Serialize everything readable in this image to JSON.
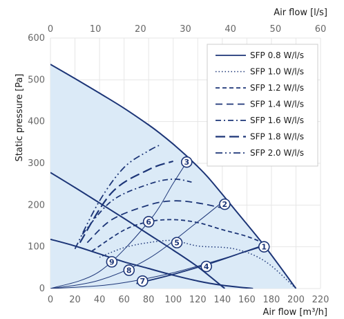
{
  "chart_data": {
    "type": "line",
    "title": "",
    "xlabel": "Air flow [m³/h]",
    "x2label": "Air flow [l/s]",
    "ylabel": "Static pressure [Pa]",
    "xlim": [
      0,
      220
    ],
    "x2lim": [
      0,
      60
    ],
    "ylim": [
      0,
      600
    ],
    "x_ticks": [
      "0",
      "20",
      "40",
      "60",
      "80",
      "100",
      "120",
      "140",
      "160",
      "180",
      "200",
      "220"
    ],
    "x2_ticks": [
      "0",
      "10",
      "20",
      "30",
      "40",
      "50",
      "60"
    ],
    "y_ticks": [
      "0",
      "100",
      "200",
      "300",
      "400",
      "500",
      "600"
    ],
    "grid": true,
    "legend_position": "top-right",
    "colors": {
      "curve": "#1c3577",
      "area_fill": "#dbeaf7",
      "grid": "#e6e6e6",
      "axis_text": "#666666"
    },
    "fan_curves": [
      {
        "x": [
          0,
          20,
          40,
          60,
          80,
          90,
          100,
          110,
          120,
          130,
          150,
          175,
          200
        ],
        "y": [
          537,
          503,
          468,
          432,
          392,
          370,
          346,
          320,
          292,
          261,
          190,
          100,
          0
        ]
      },
      {
        "x": [
          0,
          20,
          40,
          60,
          80,
          100,
          120,
          142
        ],
        "y": [
          278,
          242,
          205,
          168,
          130,
          92,
          52,
          0
        ]
      },
      {
        "x": [
          0,
          20,
          40,
          60,
          80,
          100,
          120,
          140,
          165
        ],
        "y": [
          118,
          102,
          83,
          64,
          48,
          32,
          18,
          8,
          0
        ]
      }
    ],
    "system_curves": [
      {
        "x": [
          0,
          50,
          100,
          150,
          174
        ],
        "y": [
          0,
          10,
          38,
          80,
          102
        ]
      },
      {
        "x": [
          0,
          40,
          80,
          120,
          142
        ],
        "y": [
          0,
          20,
          72,
          160,
          212
        ]
      },
      {
        "x": [
          0,
          40,
          80,
          100,
          111
        ],
        "y": [
          0,
          41,
          160,
          252,
          303
        ]
      }
    ],
    "series": [
      {
        "name": "SFP 0.8 W/l/s",
        "dash": "solid",
        "x": [
          70,
          100,
          130,
          160,
          175
        ],
        "y": [
          12,
          34,
          60,
          90,
          105
        ]
      },
      {
        "name": "SFP 1.0 W/l/s",
        "dash": "dot",
        "x": [
          40,
          60,
          80,
          100,
          120,
          150,
          175,
          200
        ],
        "y": [
          75,
          98,
          110,
          115,
          102,
          95,
          65,
          0
        ]
      },
      {
        "name": "SFP 1.2 W/l/s",
        "dash": "dash",
        "x": [
          34,
          60,
          80,
          100,
          120,
          140,
          160,
          177
        ],
        "y": [
          90,
          140,
          160,
          165,
          158,
          141,
          125,
          105
        ]
      },
      {
        "name": "SFP 1.4 W/l/s",
        "dash": "longdash",
        "x": [
          30,
          50,
          80,
          100,
          120,
          145
        ],
        "y": [
          110,
          165,
          200,
          210,
          205,
          190
        ]
      },
      {
        "name": "SFP 1.6 W/l/s",
        "dash": "dashdot",
        "x": [
          26,
          50,
          80,
          100,
          115
        ],
        "y": [
          130,
          210,
          250,
          262,
          255
        ]
      },
      {
        "name": "SFP 1.8 W/l/s",
        "dash": "longdash-bold",
        "x": [
          24,
          50,
          80,
          100
        ],
        "y": [
          110,
          230,
          285,
          305
        ]
      },
      {
        "name": "SFP 2.0 W/l/s",
        "dash": "dashdotdot",
        "x": [
          20,
          40,
          60,
          80,
          90
        ],
        "y": [
          95,
          210,
          290,
          330,
          345
        ]
      }
    ],
    "operating_points": [
      {
        "label": "1",
        "x": 174,
        "y": 100
      },
      {
        "label": "2",
        "x": 142,
        "y": 202
      },
      {
        "label": "3",
        "x": 111,
        "y": 303
      },
      {
        "label": "4",
        "x": 127,
        "y": 53
      },
      {
        "label": "5",
        "x": 103,
        "y": 110
      },
      {
        "label": "6",
        "x": 80,
        "y": 160
      },
      {
        "label": "7",
        "x": 75,
        "y": 18
      },
      {
        "label": "8",
        "x": 64,
        "y": 44
      },
      {
        "label": "9",
        "x": 50,
        "y": 64
      }
    ]
  }
}
